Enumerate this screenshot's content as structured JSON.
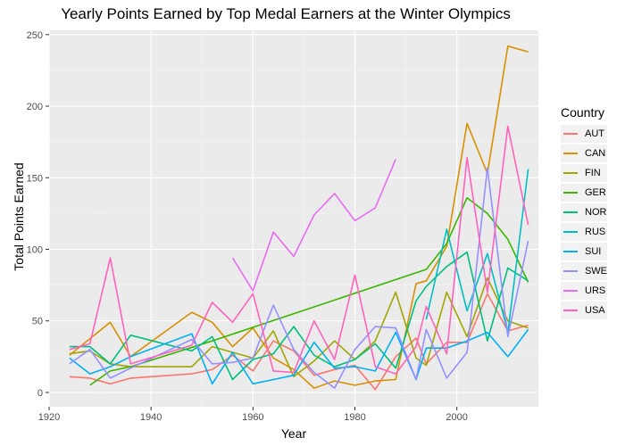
{
  "chart_data": {
    "type": "line",
    "title": "Yearly Points Earned by Top Medal Earners at the Winter Olympics",
    "xlabel": "Year",
    "ylabel": "Total Points Earned",
    "xlim": [
      1920,
      2016
    ],
    "ylim": [
      -10,
      253
    ],
    "xticks": [
      1920,
      1940,
      1960,
      1980,
      2000
    ],
    "yticks": [
      0,
      50,
      100,
      150,
      200,
      250
    ],
    "grid": true,
    "legend_title": "Country",
    "legend_position": "right",
    "series": [
      {
        "name": "AUT",
        "color": "#F8766D",
        "points": [
          [
            1924,
            11
          ],
          [
            1928,
            10
          ],
          [
            1932,
            6
          ],
          [
            1936,
            10
          ],
          [
            1948,
            13
          ],
          [
            1952,
            16
          ],
          [
            1956,
            26
          ],
          [
            1960,
            15
          ],
          [
            1964,
            36
          ],
          [
            1968,
            29
          ],
          [
            1972,
            12
          ],
          [
            1976,
            16
          ],
          [
            1980,
            19
          ],
          [
            1984,
            2
          ],
          [
            1988,
            25
          ],
          [
            1992,
            38
          ],
          [
            1994,
            20
          ],
          [
            1998,
            35
          ],
          [
            2002,
            35
          ],
          [
            2006,
            69
          ],
          [
            2010,
            43
          ],
          [
            2014,
            47
          ]
        ]
      },
      {
        "name": "CAN",
        "color": "#D89000",
        "points": [
          [
            1924,
            26
          ],
          [
            1932,
            49
          ],
          [
            1936,
            25
          ],
          [
            1948,
            56
          ],
          [
            1952,
            49
          ],
          [
            1956,
            32
          ],
          [
            1960,
            45
          ],
          [
            1964,
            24
          ],
          [
            1968,
            16
          ],
          [
            1972,
            3
          ],
          [
            1976,
            8
          ],
          [
            1980,
            5
          ],
          [
            1984,
            8
          ],
          [
            1988,
            9
          ],
          [
            1992,
            76
          ],
          [
            1994,
            78
          ],
          [
            1998,
            102
          ],
          [
            2002,
            188
          ],
          [
            2006,
            153
          ],
          [
            2010,
            242
          ],
          [
            2014,
            238
          ]
        ]
      },
      {
        "name": "FIN",
        "color": "#A3A500",
        "points": [
          [
            1924,
            27
          ],
          [
            1928,
            29
          ],
          [
            1932,
            20
          ],
          [
            1936,
            18
          ],
          [
            1948,
            18
          ],
          [
            1952,
            32
          ],
          [
            1956,
            28
          ],
          [
            1960,
            24
          ],
          [
            1964,
            43
          ],
          [
            1968,
            11
          ],
          [
            1972,
            22
          ],
          [
            1976,
            36
          ],
          [
            1980,
            23
          ],
          [
            1984,
            36
          ],
          [
            1988,
            70
          ],
          [
            1992,
            24
          ],
          [
            1994,
            19
          ],
          [
            1998,
            70
          ],
          [
            2002,
            39
          ],
          [
            2006,
            80
          ],
          [
            2010,
            50
          ],
          [
            2014,
            45
          ]
        ]
      },
      {
        "name": "GER",
        "color": "#39B600",
        "points": [
          [
            1928,
            5
          ],
          [
            1932,
            15
          ],
          [
            1936,
            18
          ],
          [
            1952,
            36
          ],
          [
            1994,
            86
          ],
          [
            1998,
            104
          ],
          [
            2002,
            136
          ],
          [
            2006,
            125
          ],
          [
            2010,
            107
          ],
          [
            2014,
            77
          ]
        ]
      },
      {
        "name": "NOR",
        "color": "#00BF7D",
        "points": [
          [
            1924,
            32
          ],
          [
            1928,
            32
          ],
          [
            1932,
            20
          ],
          [
            1936,
            40
          ],
          [
            1948,
            29
          ],
          [
            1952,
            39
          ],
          [
            1956,
            9
          ],
          [
            1960,
            23
          ],
          [
            1964,
            27
          ],
          [
            1968,
            46
          ],
          [
            1972,
            26
          ],
          [
            1976,
            18
          ],
          [
            1980,
            23
          ],
          [
            1984,
            34
          ],
          [
            1988,
            17
          ],
          [
            1992,
            64
          ],
          [
            1994,
            74
          ],
          [
            1998,
            88
          ],
          [
            2002,
            98
          ],
          [
            2006,
            36
          ],
          [
            2010,
            87
          ],
          [
            2014,
            78
          ]
        ]
      },
      {
        "name": "RUS",
        "color": "#00BFC4",
        "points": [
          [
            1994,
            51
          ],
          [
            1998,
            114
          ],
          [
            2002,
            57
          ],
          [
            2006,
            97
          ],
          [
            2010,
            42
          ],
          [
            2014,
            156
          ]
        ]
      },
      {
        "name": "SUI",
        "color": "#00B0F6",
        "points": [
          [
            1924,
            24
          ],
          [
            1928,
            13
          ],
          [
            1932,
            18
          ],
          [
            1936,
            25
          ],
          [
            1948,
            41
          ],
          [
            1952,
            6
          ],
          [
            1956,
            28
          ],
          [
            1960,
            6
          ],
          [
            1964,
            9
          ],
          [
            1968,
            12
          ],
          [
            1972,
            35
          ],
          [
            1976,
            17
          ],
          [
            1980,
            18
          ],
          [
            1984,
            15
          ],
          [
            1988,
            42
          ],
          [
            1992,
            9
          ],
          [
            1994,
            31
          ],
          [
            1998,
            31
          ],
          [
            2002,
            36
          ],
          [
            2006,
            42
          ],
          [
            2010,
            25
          ],
          [
            2014,
            44
          ]
        ]
      },
      {
        "name": "SWE",
        "color": "#9590FF",
        "points": [
          [
            1924,
            20
          ],
          [
            1928,
            30
          ],
          [
            1932,
            10
          ],
          [
            1936,
            17
          ],
          [
            1948,
            37
          ],
          [
            1952,
            20
          ],
          [
            1956,
            21
          ],
          [
            1960,
            24
          ],
          [
            1964,
            61
          ],
          [
            1968,
            30
          ],
          [
            1972,
            14
          ],
          [
            1976,
            3
          ],
          [
            1980,
            30
          ],
          [
            1984,
            46
          ],
          [
            1988,
            45
          ],
          [
            1992,
            9
          ],
          [
            1994,
            44
          ],
          [
            1998,
            10
          ],
          [
            2002,
            28
          ],
          [
            2006,
            157
          ],
          [
            2010,
            39
          ],
          [
            2014,
            106
          ]
        ]
      },
      {
        "name": "URS",
        "color": "#E76BF3",
        "points": [
          [
            1956,
            94
          ],
          [
            1960,
            71
          ],
          [
            1964,
            112
          ],
          [
            1968,
            95
          ],
          [
            1972,
            124
          ],
          [
            1976,
            139
          ],
          [
            1980,
            120
          ],
          [
            1984,
            129
          ],
          [
            1988,
            163
          ]
        ]
      },
      {
        "name": "USA",
        "color": "#FF62BC",
        "points": [
          [
            1924,
            30
          ],
          [
            1928,
            34
          ],
          [
            1932,
            94
          ],
          [
            1936,
            20
          ],
          [
            1948,
            33
          ],
          [
            1952,
            63
          ],
          [
            1956,
            49
          ],
          [
            1960,
            69
          ],
          [
            1964,
            15
          ],
          [
            1968,
            14
          ],
          [
            1972,
            50
          ],
          [
            1976,
            23
          ],
          [
            1980,
            82
          ],
          [
            1984,
            18
          ],
          [
            1988,
            13
          ],
          [
            1992,
            32
          ],
          [
            1994,
            60
          ],
          [
            1998,
            27
          ],
          [
            2002,
            164
          ],
          [
            2006,
            70
          ],
          [
            2010,
            186
          ],
          [
            2014,
            117
          ]
        ]
      }
    ]
  }
}
